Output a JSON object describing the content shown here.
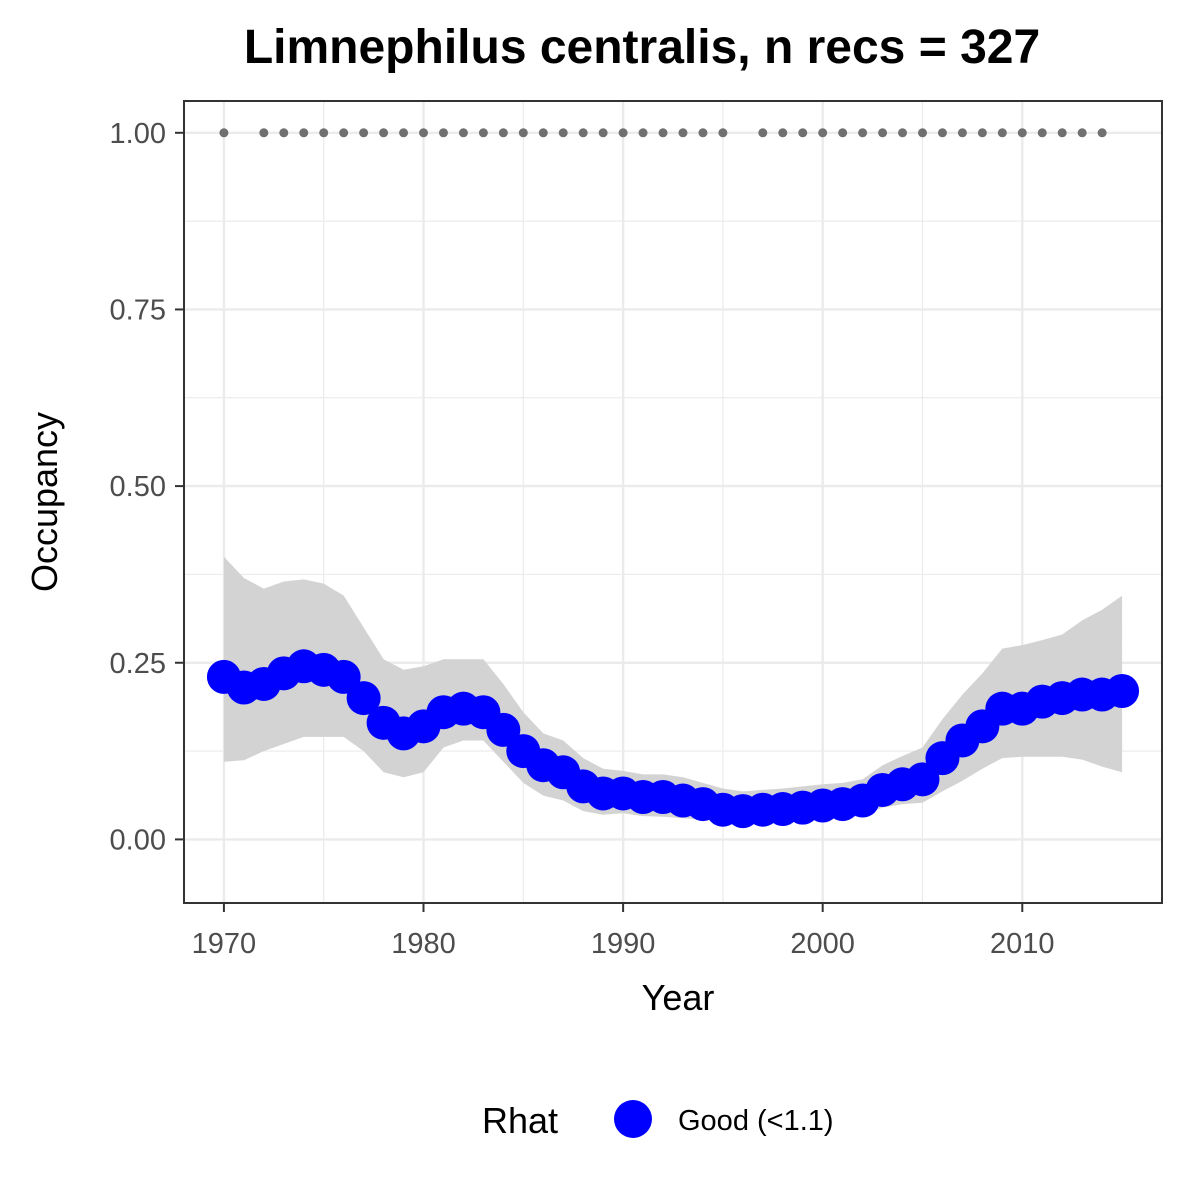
{
  "chart_data": {
    "type": "line",
    "title": "Limnephilus centralis, n recs = 327",
    "xlabel": "Year",
    "ylabel": "Occupancy",
    "xlim": [
      1968,
      2017
    ],
    "ylim": [
      -0.09,
      1.045
    ],
    "x_ticks": [
      1970,
      1980,
      1990,
      2000,
      2010
    ],
    "x_tick_labels": [
      "1970",
      "1980",
      "1990",
      "2000",
      "2010"
    ],
    "y_ticks": [
      0,
      0.25,
      0.5,
      0.75,
      1.0
    ],
    "y_tick_labels": [
      "0.00",
      "0.25",
      "0.50",
      "0.75",
      "1.00"
    ],
    "grid": true,
    "legend_position": "bottom",
    "legend_title": "Rhat",
    "legend_label": "Good (<1.1)",
    "colors": {
      "series": "#0000ff",
      "ribbon": "#d3d3d3",
      "records": "#707070",
      "grid": "#ebebeb",
      "border": "#333333"
    },
    "series": [
      {
        "name": "Good (<1.1)",
        "x": [
          1970,
          1971,
          1972,
          1973,
          1974,
          1975,
          1976,
          1977,
          1978,
          1979,
          1980,
          1981,
          1982,
          1983,
          1984,
          1985,
          1986,
          1987,
          1988,
          1989,
          1990,
          1991,
          1992,
          1993,
          1994,
          1995,
          1996,
          1997,
          1998,
          1999,
          2000,
          2001,
          2002,
          2003,
          2004,
          2005,
          2006,
          2007,
          2008,
          2009,
          2010,
          2011,
          2012,
          2013,
          2014,
          2015
        ],
        "y": [
          0.23,
          0.215,
          0.22,
          0.235,
          0.245,
          0.24,
          0.23,
          0.2,
          0.165,
          0.15,
          0.16,
          0.18,
          0.185,
          0.18,
          0.155,
          0.125,
          0.105,
          0.095,
          0.075,
          0.065,
          0.065,
          0.06,
          0.06,
          0.055,
          0.05,
          0.042,
          0.04,
          0.042,
          0.043,
          0.045,
          0.048,
          0.05,
          0.055,
          0.07,
          0.078,
          0.085,
          0.115,
          0.14,
          0.16,
          0.185,
          0.185,
          0.195,
          0.2,
          0.205,
          0.205,
          0.21
        ],
        "lower": [
          0.11,
          0.112,
          0.125,
          0.135,
          0.145,
          0.145,
          0.145,
          0.125,
          0.095,
          0.088,
          0.095,
          0.13,
          0.14,
          0.14,
          0.11,
          0.08,
          0.062,
          0.055,
          0.04,
          0.035,
          0.037,
          0.033,
          0.032,
          0.03,
          0.028,
          0.024,
          0.023,
          0.024,
          0.025,
          0.027,
          0.03,
          0.03,
          0.034,
          0.045,
          0.05,
          0.052,
          0.068,
          0.083,
          0.1,
          0.115,
          0.117,
          0.117,
          0.117,
          0.113,
          0.103,
          0.095
        ],
        "upper": [
          0.4,
          0.37,
          0.355,
          0.365,
          0.368,
          0.362,
          0.345,
          0.3,
          0.255,
          0.24,
          0.245,
          0.255,
          0.255,
          0.255,
          0.22,
          0.18,
          0.15,
          0.14,
          0.115,
          0.1,
          0.097,
          0.092,
          0.092,
          0.088,
          0.08,
          0.072,
          0.068,
          0.07,
          0.072,
          0.075,
          0.078,
          0.08,
          0.085,
          0.105,
          0.118,
          0.13,
          0.17,
          0.205,
          0.235,
          0.27,
          0.275,
          0.282,
          0.29,
          0.31,
          0.325,
          0.345
        ]
      }
    ],
    "records": {
      "y": 1.0,
      "x": [
        1970,
        1972,
        1973,
        1974,
        1975,
        1976,
        1977,
        1978,
        1979,
        1980,
        1981,
        1982,
        1983,
        1984,
        1985,
        1986,
        1987,
        1988,
        1989,
        1990,
        1991,
        1992,
        1993,
        1994,
        1995,
        1997,
        1998,
        1999,
        2000,
        2001,
        2002,
        2003,
        2004,
        2005,
        2006,
        2007,
        2008,
        2009,
        2010,
        2011,
        2012,
        2013,
        2014
      ]
    }
  }
}
